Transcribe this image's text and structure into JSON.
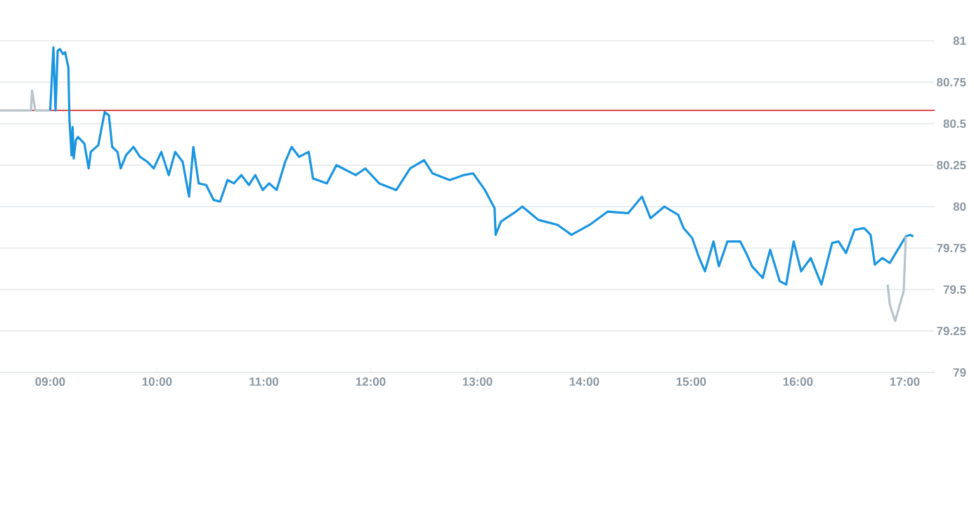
{
  "chart_data": {
    "type": "line",
    "xlim": [
      8.53,
      17.28
    ],
    "ylim": [
      79,
      81
    ],
    "xticks": [
      {
        "value": 9,
        "label": "09:00"
      },
      {
        "value": 10,
        "label": "10:00"
      },
      {
        "value": 11,
        "label": "11:00"
      },
      {
        "value": 12,
        "label": "12:00"
      },
      {
        "value": 13,
        "label": "13:00"
      },
      {
        "value": 14,
        "label": "14:00"
      },
      {
        "value": 15,
        "label": "15:00"
      },
      {
        "value": 16,
        "label": "16:00"
      },
      {
        "value": 17,
        "label": "17:00"
      }
    ],
    "yticks": [
      79,
      79.25,
      79.5,
      79.75,
      80,
      80.25,
      80.5,
      80.75,
      81
    ],
    "grid": "y",
    "ref_lines": [
      {
        "axis": "y",
        "value": 80.58,
        "color": "#d32f2f"
      }
    ],
    "series": [
      {
        "color": "#b8c4cc",
        "x": [
          8.53,
          8.82,
          8.83,
          8.86,
          8.99,
          9.0
        ],
        "values": [
          80.58,
          80.58,
          80.7,
          80.58,
          80.58,
          80.58
        ]
      },
      {
        "color": "#1a95e0",
        "x": [
          9.0,
          9.03,
          9.05,
          9.07,
          9.09,
          9.12,
          9.14,
          9.17,
          9.18,
          9.2,
          9.21,
          9.22,
          9.24,
          9.26,
          9.32,
          9.36,
          9.38,
          9.45,
          9.51,
          9.55,
          9.58,
          9.63,
          9.66,
          9.71,
          9.78,
          9.84,
          9.91,
          9.97,
          10.04,
          10.11,
          10.17,
          10.24,
          10.3,
          10.34,
          10.39,
          10.46,
          10.53,
          10.59,
          10.66,
          10.72,
          10.79,
          10.86,
          10.92,
          10.99,
          11.05,
          11.12,
          11.2,
          11.26,
          11.33,
          11.42,
          11.46,
          11.59,
          11.68,
          11.86,
          11.95,
          12.08,
          12.24,
          12.37,
          12.5,
          12.58,
          12.74,
          12.87,
          12.96,
          13.07,
          13.16,
          13.17,
          13.22,
          13.36,
          13.42,
          13.57,
          13.75,
          13.88,
          14.05,
          14.22,
          14.41,
          14.54,
          14.62,
          14.75,
          14.88,
          14.93,
          15.01,
          15.07,
          15.13,
          15.21,
          15.26,
          15.34,
          15.46,
          15.53,
          15.57,
          15.67,
          15.74,
          15.83,
          15.89,
          15.96,
          16.03,
          16.12,
          16.22,
          16.32,
          16.38,
          16.45,
          16.53,
          16.62,
          16.68,
          16.72,
          16.79,
          16.86,
          17.01,
          17.05,
          17.08
        ],
        "values": [
          80.58,
          80.96,
          80.58,
          80.94,
          80.95,
          80.92,
          80.93,
          80.84,
          80.53,
          80.31,
          80.48,
          80.29,
          80.4,
          80.42,
          80.38,
          80.23,
          80.33,
          80.37,
          80.57,
          80.55,
          80.36,
          80.33,
          80.23,
          80.31,
          80.36,
          80.3,
          80.27,
          80.23,
          80.33,
          80.19,
          80.33,
          80.27,
          80.06,
          80.36,
          80.14,
          80.13,
          80.04,
          80.03,
          80.16,
          80.14,
          80.19,
          80.13,
          80.19,
          80.1,
          80.14,
          80.1,
          80.27,
          80.36,
          80.3,
          80.33,
          80.17,
          80.14,
          80.25,
          80.19,
          80.23,
          80.14,
          80.1,
          80.23,
          80.28,
          80.2,
          80.16,
          80.19,
          80.2,
          80.1,
          79.99,
          79.83,
          79.91,
          79.97,
          80.0,
          79.92,
          79.89,
          79.83,
          79.89,
          79.97,
          79.96,
          80.06,
          79.93,
          80.0,
          79.95,
          79.87,
          79.81,
          79.7,
          79.61,
          79.79,
          79.64,
          79.79,
          79.79,
          79.7,
          79.64,
          79.57,
          79.74,
          79.55,
          79.53,
          79.79,
          79.61,
          79.69,
          79.53,
          79.78,
          79.79,
          79.72,
          79.86,
          79.87,
          79.83,
          79.65,
          79.69,
          79.66,
          79.82,
          79.83,
          79.82
        ]
      },
      {
        "color": "#b8c4cc",
        "x": [
          16.84,
          16.86,
          16.91,
          16.95,
          16.99,
          17.01
        ],
        "values": [
          79.53,
          79.41,
          79.31,
          79.4,
          79.49,
          79.82
        ]
      }
    ]
  }
}
